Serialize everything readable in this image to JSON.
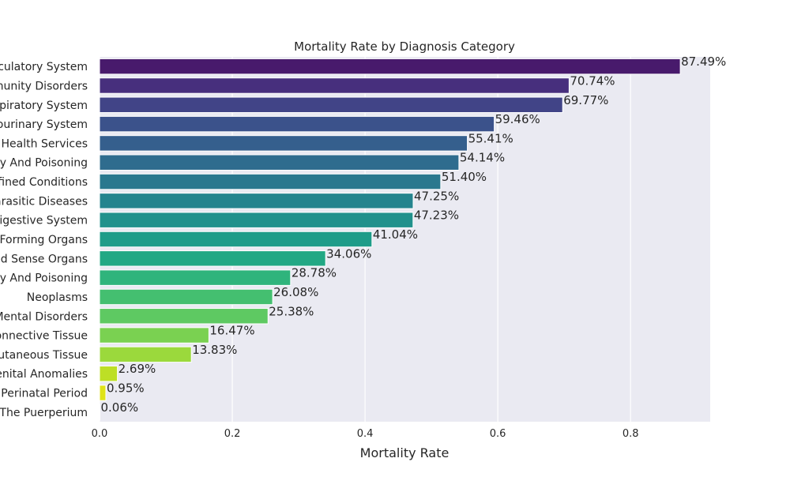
{
  "chart_data": {
    "type": "bar",
    "orientation": "horizontal",
    "title": "Mortality Rate by Diagnosis Category",
    "xlabel": "Mortality Rate",
    "ylabel": "",
    "xlim": [
      0,
      0.92
    ],
    "xticks": [
      0.0,
      0.2,
      0.4,
      0.6,
      0.8
    ],
    "xtick_labels": [
      "0.0",
      "0.2",
      "0.4",
      "0.6",
      "0.8"
    ],
    "grid": true,
    "categories": [
      "rculatory System",
      "munity Disorders",
      "spiratory System",
      "ourinary System",
      "Health Services",
      "y And Poisoning",
      "efined Conditions",
      "arasitic Diseases",
      "Digestive System",
      "-Forming Organs",
      "d Sense Organs",
      "y And Poisoning",
      "Neoplasms",
      "Mental Disorders",
      "onnective Tissue",
      "utaneous Tissue",
      "enital Anomalies",
      "Perinatal Period",
      "The Puerperium"
    ],
    "values": [
      0.8749,
      0.7074,
      0.6977,
      0.5946,
      0.5541,
      0.5414,
      0.514,
      0.4725,
      0.4723,
      0.4104,
      0.3406,
      0.2878,
      0.2608,
      0.2538,
      0.1647,
      0.1383,
      0.0269,
      0.0095,
      0.0006
    ],
    "value_labels": [
      "87.49%",
      "70.74%",
      "69.77%",
      "59.46%",
      "55.41%",
      "54.14%",
      "51.40%",
      "47.25%",
      "47.23%",
      "41.04%",
      "34.06%",
      "28.78%",
      "26.08%",
      "25.38%",
      "16.47%",
      "13.83%",
      "2.69%",
      "0.95%",
      "0.06%"
    ],
    "colors": [
      "#481a6c",
      "#472f7d",
      "#414487",
      "#3b528b",
      "#355f8d",
      "#2f6c8e",
      "#2a788e",
      "#25848e",
      "#21918c",
      "#1e9c89",
      "#22a884",
      "#2fb47c",
      "#44bf70",
      "#5ec962",
      "#7ad151",
      "#9bd93c",
      "#bddf26",
      "#dfe318",
      "#fde725"
    ],
    "background_color": "#eaeaf2"
  }
}
